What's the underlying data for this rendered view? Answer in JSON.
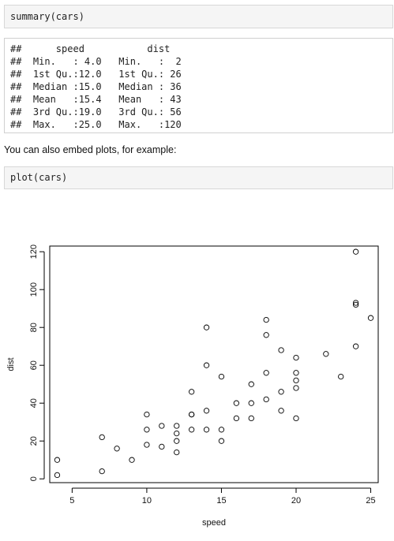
{
  "code_cells": [
    {
      "code": "summary(cars)"
    },
    {
      "code": "plot(cars)"
    }
  ],
  "output_lines": [
    "##      speed           dist       ",
    "##  Min.   : 4.0   Min.   :  2  ",
    "##  1st Qu.:12.0   1st Qu.: 26  ",
    "##  Median :15.0   Median : 36  ",
    "##  Mean   :15.4   Mean   : 43  ",
    "##  3rd Qu.:19.0   3rd Qu.: 56  ",
    "##  Max.   :25.0   Max.   :120  "
  ],
  "prose": "You can also embed plots, for example:",
  "chart_data": {
    "type": "scatter",
    "xlabel": "speed",
    "ylabel": "dist",
    "xlim": [
      3.5,
      25.5
    ],
    "ylim": [
      -2,
      123
    ],
    "xticks": [
      5,
      10,
      15,
      20,
      25
    ],
    "yticks": [
      0,
      20,
      40,
      60,
      80,
      100,
      120
    ],
    "grid": false,
    "points": [
      [
        4,
        2
      ],
      [
        4,
        10
      ],
      [
        7,
        4
      ],
      [
        7,
        22
      ],
      [
        8,
        16
      ],
      [
        9,
        10
      ],
      [
        10,
        18
      ],
      [
        10,
        26
      ],
      [
        10,
        34
      ],
      [
        11,
        17
      ],
      [
        11,
        28
      ],
      [
        12,
        14
      ],
      [
        12,
        20
      ],
      [
        12,
        24
      ],
      [
        12,
        28
      ],
      [
        13,
        26
      ],
      [
        13,
        34
      ],
      [
        13,
        34
      ],
      [
        13,
        46
      ],
      [
        14,
        26
      ],
      [
        14,
        36
      ],
      [
        14,
        60
      ],
      [
        14,
        80
      ],
      [
        15,
        20
      ],
      [
        15,
        26
      ],
      [
        15,
        54
      ],
      [
        16,
        32
      ],
      [
        16,
        40
      ],
      [
        17,
        32
      ],
      [
        17,
        40
      ],
      [
        17,
        50
      ],
      [
        18,
        42
      ],
      [
        18,
        56
      ],
      [
        18,
        76
      ],
      [
        18,
        84
      ],
      [
        19,
        36
      ],
      [
        19,
        46
      ],
      [
        19,
        68
      ],
      [
        20,
        32
      ],
      [
        20,
        48
      ],
      [
        20,
        52
      ],
      [
        20,
        56
      ],
      [
        20,
        64
      ],
      [
        22,
        66
      ],
      [
        23,
        54
      ],
      [
        24,
        70
      ],
      [
        24,
        92
      ],
      [
        24,
        93
      ],
      [
        24,
        120
      ],
      [
        25,
        85
      ]
    ]
  }
}
